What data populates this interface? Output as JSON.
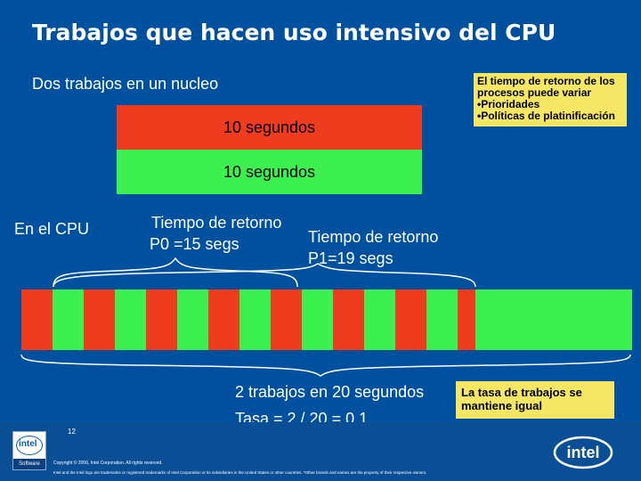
{
  "slide": {
    "title": "Trabajos que hacen uso intensivo del CPU",
    "two_jobs_label": "Dos trabajos en un nucleo",
    "job_bars": [
      {
        "label": "10 segundos",
        "color": "#f03c1e"
      },
      {
        "label": "10 segundos",
        "color": "#3cf050"
      }
    ],
    "note_top": {
      "lines": [
        "El tiempo de retorno de los",
        "procesos puede variar",
        "•Prioridades",
        "•Políticas de platinificación"
      ]
    },
    "cpu_label": "En el CPU",
    "turnaround_p0": {
      "line1": "Tiempo de retorno",
      "line2": "P0 =15 segs"
    },
    "turnaround_p1": {
      "line1": "Tiempo de retorno",
      "line2": "P1=19 segs"
    },
    "timeline": {
      "colors": {
        "red": "#f03c1e",
        "green": "#3cf050"
      },
      "segments": [
        "red",
        "green",
        "red",
        "green",
        "red",
        "green",
        "red",
        "green",
        "red",
        "green",
        "red",
        "green",
        "red",
        "green",
        "red",
        "green"
      ]
    },
    "summary": {
      "line1": "2 trabajos en 20 segundos",
      "line2": "Tasa = 2 / 20 = 0.1"
    },
    "note_bottom": {
      "line1": "La tasa de trabajos se",
      "line2": "mantiene igual"
    },
    "footer": {
      "page_number": "12",
      "copyright": "Copyright © 2006, Intel Corporation. All rights reserved.",
      "legal": "Intel and the Intel logo are trademarks or registered trademarks of Intel Corporation or its subsidiaries in the United States or other countries. *Other brands and names are the property of their respective owners.",
      "badge_logo": "intel",
      "badge_sub": "Software",
      "logo_text": "intel"
    }
  }
}
